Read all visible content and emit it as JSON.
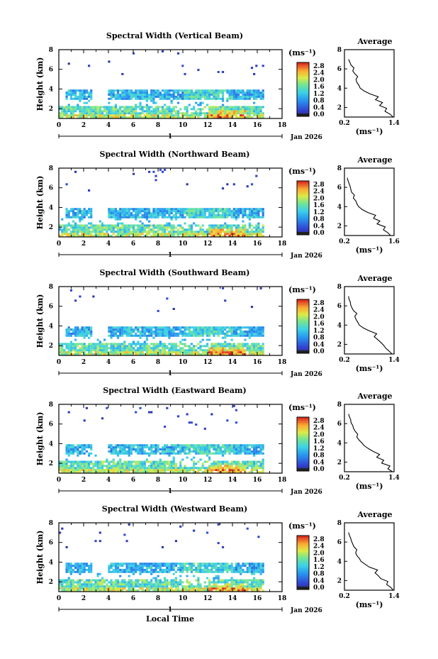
{
  "chart_data": [
    {
      "type": "heatmap",
      "title": "Spectral Width (Vertical Beam)",
      "ylabel": "Height (km)",
      "xlim": [
        0,
        18
      ],
      "ylim": [
        1,
        8
      ],
      "x_ticks": [
        "0",
        "2",
        "4",
        "6",
        "8",
        "10",
        "12",
        "14",
        "16",
        "18"
      ],
      "y_ticks": [
        "2",
        "4",
        "6",
        "8"
      ],
      "date_label": "1",
      "month_label": "Jan 2026",
      "colorbar": {
        "unit": "(ms⁻¹)",
        "ticks": [
          "0.0",
          "0.4",
          "0.8",
          "1.2",
          "1.6",
          "2.0",
          "2.4",
          "2.8"
        ],
        "range": [
          0,
          3.0
        ]
      },
      "profile": {
        "title": "Average",
        "xlim": [
          0.2,
          1.4
        ],
        "x_ticks": [
          "0.2",
          "1.4"
        ],
        "ylim": [
          1,
          8
        ],
        "y_ticks": [
          "2",
          "4",
          "6",
          "8"
        ],
        "unit": "(ms⁻¹)",
        "height": [
          1.0,
          1.3,
          1.6,
          1.9,
          2.2,
          2.5,
          2.8,
          3.1,
          3.4,
          3.7,
          4.0,
          4.3,
          4.6,
          4.9,
          5.2,
          5.5,
          5.8,
          6.1,
          6.4,
          6.7,
          7.0
        ],
        "width": [
          1.38,
          1.3,
          1.18,
          1.22,
          1.05,
          1.12,
          0.95,
          1.02,
          0.82,
          0.68,
          0.58,
          0.55,
          0.5,
          0.48,
          0.52,
          0.45,
          0.4,
          0.43,
          0.36,
          0.33,
          0.3
        ]
      }
    },
    {
      "type": "heatmap",
      "title": "Spectral Width (Northward Beam)",
      "ylabel": "Height (km)",
      "xlim": [
        0,
        18
      ],
      "ylim": [
        1,
        8
      ],
      "x_ticks": [
        "0",
        "2",
        "4",
        "6",
        "8",
        "10",
        "12",
        "14",
        "16",
        "18"
      ],
      "y_ticks": [
        "2",
        "4",
        "6",
        "8"
      ],
      "date_label": "1",
      "month_label": "Jan 2026",
      "colorbar": {
        "unit": "(ms⁻¹)",
        "ticks": [
          "0.0",
          "0.4",
          "0.8",
          "1.2",
          "1.6",
          "2.0",
          "2.4",
          "2.8"
        ],
        "range": [
          0,
          3.0
        ]
      },
      "profile": {
        "title": "Average",
        "xlim": [
          0.2,
          1.6
        ],
        "x_ticks": [
          "0.2",
          "1.6"
        ],
        "ylim": [
          1,
          8
        ],
        "y_ticks": [
          "2",
          "4",
          "6",
          "8"
        ],
        "unit": "(ms⁻¹)",
        "height": [
          1.0,
          1.3,
          1.6,
          1.9,
          2.2,
          2.5,
          2.8,
          3.1,
          3.4,
          3.7,
          4.0,
          4.3,
          4.6,
          4.9,
          5.2,
          5.5,
          5.8,
          6.1,
          6.4,
          6.7,
          7.0
        ],
        "width": [
          1.5,
          1.42,
          1.3,
          1.35,
          1.12,
          1.2,
          1.02,
          1.08,
          0.85,
          0.7,
          0.6,
          0.55,
          0.52,
          0.45,
          0.48,
          0.4,
          0.38,
          0.36,
          0.33,
          0.3,
          0.28
        ]
      }
    },
    {
      "type": "heatmap",
      "title": "Spectral Width (Southward Beam)",
      "ylabel": "Height (km)",
      "xlim": [
        0,
        18
      ],
      "ylim": [
        1,
        8
      ],
      "x_ticks": [
        "0",
        "2",
        "4",
        "6",
        "8",
        "10",
        "12",
        "14",
        "16",
        "18"
      ],
      "y_ticks": [
        "2",
        "4",
        "6",
        "8"
      ],
      "date_label": "1",
      "month_label": "Jan 2026",
      "colorbar": {
        "unit": "(ms⁻¹)",
        "ticks": [
          "0.0",
          "0.4",
          "0.8",
          "1.2",
          "1.6",
          "2.0",
          "2.4",
          "2.8"
        ],
        "range": [
          0,
          3.0
        ]
      },
      "profile": {
        "title": "Average",
        "xlim": [
          0.2,
          1.4
        ],
        "x_ticks": [
          "0.2",
          "1.4"
        ],
        "ylim": [
          1,
          8
        ],
        "y_ticks": [
          "2",
          "4",
          "6",
          "8"
        ],
        "unit": "(ms⁻¹)",
        "height": [
          1.0,
          1.3,
          1.6,
          1.9,
          2.2,
          2.5,
          2.8,
          3.1,
          3.4,
          3.7,
          4.0,
          4.3,
          4.6,
          4.9,
          5.2,
          5.5,
          5.8,
          6.1,
          6.4,
          6.7,
          7.0
        ],
        "width": [
          1.35,
          1.28,
          1.2,
          1.15,
          1.08,
          1.0,
          0.92,
          0.98,
          0.8,
          0.66,
          0.56,
          0.52,
          0.48,
          0.45,
          0.5,
          0.42,
          0.38,
          0.35,
          0.34,
          0.31,
          0.3
        ]
      }
    },
    {
      "type": "heatmap",
      "title": "Spectral Width (Eastward Beam)",
      "ylabel": "Height (km)",
      "xlim": [
        0,
        18
      ],
      "ylim": [
        1,
        8
      ],
      "x_ticks": [
        "0",
        "2",
        "4",
        "6",
        "8",
        "10",
        "12",
        "14",
        "16",
        "18"
      ],
      "y_ticks": [
        "2",
        "4",
        "6",
        "8"
      ],
      "date_label": "1",
      "month_label": "Jan 2026",
      "colorbar": {
        "unit": "(ms⁻¹)",
        "ticks": [
          "0.0",
          "0.4",
          "0.8",
          "1.2",
          "1.6",
          "2.0",
          "2.4",
          "2.8"
        ],
        "range": [
          0,
          3.0
        ]
      },
      "profile": {
        "title": "Average",
        "xlim": [
          0.2,
          1.4
        ],
        "x_ticks": [
          "0.2",
          "1.4"
        ],
        "ylim": [
          1,
          8
        ],
        "y_ticks": [
          "2",
          "4",
          "6",
          "8"
        ],
        "unit": "(ms⁻¹)",
        "height": [
          1.0,
          1.3,
          1.6,
          1.9,
          2.2,
          2.5,
          2.8,
          3.1,
          3.4,
          3.7,
          4.0,
          4.3,
          4.6,
          4.9,
          5.2,
          5.5,
          5.8,
          6.1,
          6.4,
          6.7,
          7.0
        ],
        "width": [
          1.36,
          1.25,
          1.3,
          1.1,
          1.15,
          0.98,
          1.05,
          0.9,
          0.78,
          0.68,
          0.62,
          0.55,
          0.5,
          0.52,
          0.46,
          0.42,
          0.4,
          0.36,
          0.35,
          0.32,
          0.3
        ]
      }
    },
    {
      "type": "heatmap",
      "title": "Spectral Width (Westward Beam)",
      "ylabel": "Height (km)",
      "xlabel": "Local Time",
      "xlim": [
        0,
        18
      ],
      "ylim": [
        1,
        8
      ],
      "x_ticks": [
        "0",
        "2",
        "4",
        "6",
        "8",
        "10",
        "12",
        "14",
        "16",
        "18"
      ],
      "y_ticks": [
        "2",
        "4",
        "6",
        "8"
      ],
      "date_label": "1",
      "month_label": "Jan 2026",
      "colorbar": {
        "unit": "(ms⁻¹)",
        "ticks": [
          "0.0",
          "0.4",
          "0.8",
          "1.2",
          "1.6",
          "2.0",
          "2.4",
          "2.8"
        ],
        "range": [
          0,
          3.0
        ]
      },
      "profile": {
        "title": "Average",
        "xlim": [
          0.2,
          1.4
        ],
        "x_ticks": [
          "0.2",
          "1.4"
        ],
        "ylim": [
          1,
          8
        ],
        "y_ticks": [
          "2",
          "4",
          "6",
          "8"
        ],
        "unit": "(ms⁻¹)",
        "height": [
          1.0,
          1.3,
          1.6,
          1.9,
          2.2,
          2.5,
          2.8,
          3.1,
          3.4,
          3.7,
          4.0,
          4.3,
          4.6,
          4.9,
          5.2,
          5.5,
          5.8,
          6.1,
          6.4,
          6.7,
          7.0
        ],
        "width": [
          1.38,
          1.32,
          1.22,
          1.25,
          1.08,
          1.02,
          0.94,
          1.0,
          0.8,
          0.7,
          0.6,
          0.56,
          0.5,
          0.47,
          0.5,
          0.43,
          0.4,
          0.37,
          0.35,
          0.32,
          0.3
        ]
      }
    }
  ]
}
